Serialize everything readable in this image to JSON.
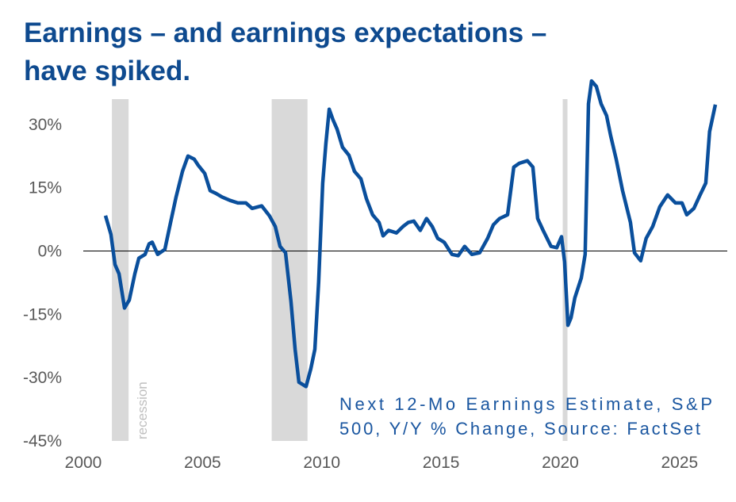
{
  "chart_data": {
    "type": "line",
    "title": [
      "Earnings – and earnings expectations –",
      "have spiked."
    ],
    "annotation": [
      "Next 12-Mo Earnings Estimate, S&P",
      "500, Y/Y % Change, Source: FactSet"
    ],
    "recession_label": "recession",
    "recessions": [
      [
        2001.2,
        2001.9
      ],
      [
        2007.9,
        2009.4
      ],
      [
        2020.1,
        2020.3
      ]
    ],
    "xlim": [
      2000,
      2027
    ],
    "xticks": [
      2000,
      2005,
      2010,
      2015,
      2020,
      2025
    ],
    "ylim": [
      -45,
      36
    ],
    "yticks": [
      {
        "value": -45,
        "label": "-45%"
      },
      {
        "value": -30,
        "label": "-30%"
      },
      {
        "value": -15,
        "label": "-15%"
      },
      {
        "value": 0,
        "label": "0%"
      },
      {
        "value": 15,
        "label": "15%"
      },
      {
        "value": 30,
        "label": "30%"
      }
    ],
    "series": [
      {
        "color": "#0a4f9c",
        "x": [
          2000.93,
          2001.16,
          2001.33,
          2001.5,
          2001.73,
          2001.93,
          2002.16,
          2002.33,
          2002.59,
          2002.76,
          2002.89,
          2003.12,
          2003.42,
          2003.66,
          2003.89,
          2004.16,
          2004.39,
          2004.65,
          2004.82,
          2005.09,
          2005.32,
          2005.55,
          2005.82,
          2006.15,
          2006.48,
          2006.82,
          2007.08,
          2007.48,
          2007.81,
          2008.05,
          2008.25,
          2008.48,
          2008.71,
          2008.88,
          2009.04,
          2009.34,
          2009.54,
          2009.71,
          2009.87,
          2010.04,
          2010.17,
          2010.31,
          2010.47,
          2010.64,
          2010.87,
          2011.14,
          2011.37,
          2011.64,
          2011.87,
          2012.13,
          2012.4,
          2012.57,
          2012.8,
          2013.13,
          2013.4,
          2013.63,
          2013.86,
          2014.13,
          2014.39,
          2014.63,
          2014.86,
          2015.13,
          2015.46,
          2015.72,
          2015.99,
          2016.29,
          2016.62,
          2016.95,
          2017.19,
          2017.45,
          2017.79,
          2018.05,
          2018.28,
          2018.62,
          2018.85,
          2019.05,
          2019.28,
          2019.61,
          2019.85,
          2020.05,
          2020.18,
          2020.32,
          2020.45,
          2020.61,
          2020.88,
          2021.04,
          2021.18,
          2021.31,
          2021.51,
          2021.71,
          2021.94,
          2022.11,
          2022.34,
          2022.61,
          2022.94,
          2023.11,
          2023.37,
          2023.6,
          2023.87,
          2024.17,
          2024.5,
          2024.83,
          2025.1,
          2025.3,
          2025.6,
          2025.86,
          2026.1,
          2026.26,
          2026.5
        ],
        "values": [
          8.4,
          3.9,
          -3.2,
          -5.4,
          -13.5,
          -11.6,
          -5.4,
          -1.7,
          -0.8,
          1.7,
          2.1,
          -0.8,
          0.4,
          6.8,
          12.8,
          18.9,
          22.5,
          21.8,
          20.3,
          18.4,
          14.3,
          13.7,
          12.8,
          12.0,
          11.4,
          11.4,
          10.1,
          10.7,
          8.3,
          5.8,
          1.1,
          -0.4,
          -12.0,
          -23.3,
          -31.1,
          -32.1,
          -27.9,
          -23.3,
          -7.3,
          16.1,
          25.5,
          33.6,
          31.1,
          28.9,
          24.6,
          22.7,
          18.9,
          17.1,
          12.4,
          8.6,
          6.8,
          3.6,
          4.9,
          4.3,
          5.8,
          6.8,
          7.1,
          4.9,
          7.7,
          5.8,
          3.0,
          2.1,
          -0.8,
          -1.1,
          1.1,
          -0.8,
          -0.4,
          3.0,
          6.2,
          7.7,
          8.6,
          19.9,
          20.8,
          21.4,
          19.9,
          7.7,
          4.9,
          1.1,
          0.8,
          3.4,
          -2.6,
          -17.6,
          -15.8,
          -11.1,
          -6.4,
          -0.8,
          34.9,
          40.3,
          39.0,
          34.9,
          32.1,
          27.4,
          21.8,
          14.3,
          6.8,
          -0.4,
          -2.3,
          3.0,
          5.8,
          10.5,
          13.3,
          11.4,
          11.4,
          8.6,
          10.1,
          13.3,
          16.1,
          28.3,
          34.7
        ]
      }
    ]
  }
}
